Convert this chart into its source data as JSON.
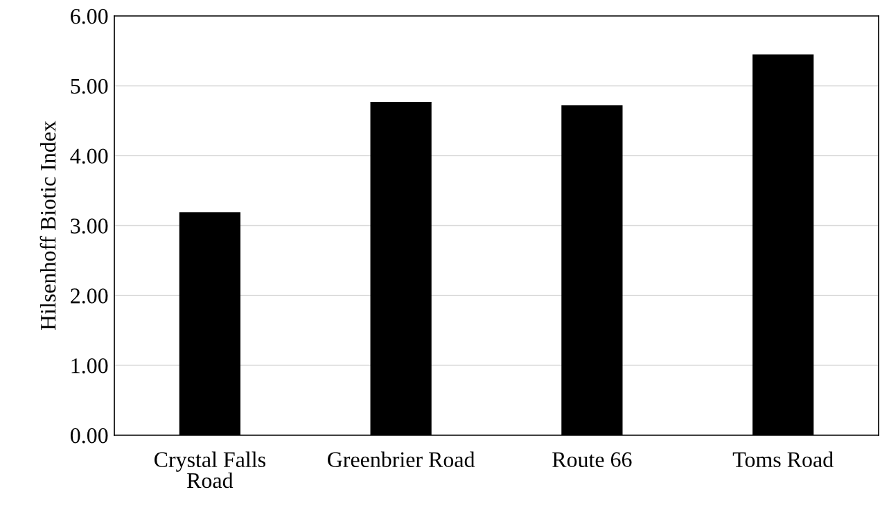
{
  "chart_data": {
    "type": "bar",
    "ylabel": "Hilsenhoff Biotic Index",
    "categories": [
      "Crystal Falls\nRoad",
      "Greenbrier Road",
      "Route 66",
      "Toms Road"
    ],
    "values": [
      3.19,
      4.77,
      4.72,
      5.45
    ],
    "color": "#000000",
    "ylim": [
      0,
      6
    ],
    "yticks": [
      {
        "value": 0,
        "label": "0.00"
      },
      {
        "value": 1,
        "label": "1.00"
      },
      {
        "value": 2,
        "label": "2.00"
      },
      {
        "value": 3,
        "label": "3.00"
      },
      {
        "value": 4,
        "label": "4.00"
      },
      {
        "value": 5,
        "label": "5.00"
      },
      {
        "value": 6,
        "label": "6.00"
      }
    ],
    "grid": "y",
    "legend": false
  }
}
